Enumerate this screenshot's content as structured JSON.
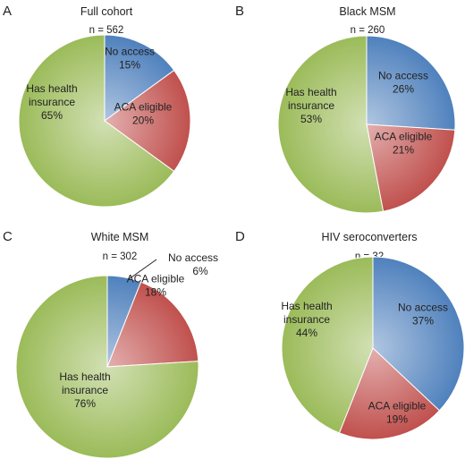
{
  "chart_data": [
    {
      "type": "pie",
      "panel": "A",
      "title": "Full cohort",
      "n_label": "n = 562",
      "slices": [
        {
          "label": [
            "No access",
            "15%"
          ],
          "value": 15,
          "color": "#4f81bd"
        },
        {
          "label": [
            "ACA eligible",
            "20%"
          ],
          "value": 20,
          "color": "#c0504d"
        },
        {
          "label": [
            "Has health",
            "insurance",
            "65%"
          ],
          "value": 65,
          "color": "#9bbb59"
        }
      ]
    },
    {
      "type": "pie",
      "panel": "B",
      "title": "Black MSM",
      "n_label": "n = 260",
      "slices": [
        {
          "label": [
            "No access",
            "26%"
          ],
          "value": 26,
          "color": "#4f81bd"
        },
        {
          "label": [
            "ACA eligible",
            "21%"
          ],
          "value": 21,
          "color": "#c0504d"
        },
        {
          "label": [
            "Has health",
            "insurance",
            "53%"
          ],
          "value": 53,
          "color": "#9bbb59"
        }
      ]
    },
    {
      "type": "pie",
      "panel": "C",
      "title": "White MSM",
      "n_label": "n = 302",
      "slices": [
        {
          "label": [
            "No access",
            "6%"
          ],
          "value": 6,
          "color": "#4f81bd"
        },
        {
          "label": [
            "ACA eligible",
            "18%"
          ],
          "value": 18,
          "color": "#c0504d"
        },
        {
          "label": [
            "Has health",
            "insurance",
            "76%"
          ],
          "value": 76,
          "color": "#9bbb59"
        }
      ]
    },
    {
      "type": "pie",
      "panel": "D",
      "title": "HIV seroconverters",
      "n_label": "n = 32",
      "slices": [
        {
          "label": [
            "No access",
            "37%"
          ],
          "value": 37,
          "color": "#4f81bd"
        },
        {
          "label": [
            "ACA eligible",
            "19%"
          ],
          "value": 19,
          "color": "#c0504d"
        },
        {
          "label": [
            "Has health",
            "insurance",
            "44%"
          ],
          "value": 44,
          "color": "#9bbb59"
        }
      ]
    }
  ]
}
